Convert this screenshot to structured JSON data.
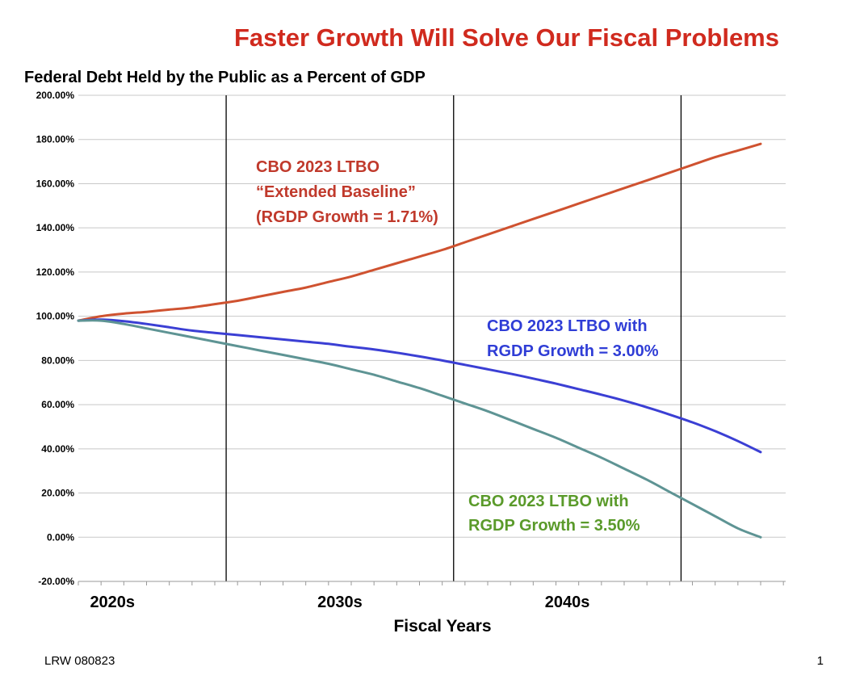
{
  "title": "Faster Growth Will Solve Our Fiscal Problems",
  "footer": {
    "left": "LRW 080823",
    "page_number": "1"
  },
  "colors": {
    "title": "#d02a1e",
    "grid": "#c8c8c8",
    "decade_lines": "#000000"
  },
  "chart_data": {
    "type": "line",
    "subtitle": "Federal Debt Held by the Public as a Percent of GDP",
    "xlabel": "Fiscal Years",
    "ylabel": "",
    "xlim": [
      2019,
      2050
    ],
    "ylim": [
      -20,
      200
    ],
    "y_ticks": [
      -20,
      0,
      20,
      40,
      60,
      80,
      100,
      120,
      140,
      160,
      180,
      200
    ],
    "y_tick_labels": [
      "-20.00%",
      "0.00%",
      "20.00%",
      "40.00%",
      "60.00%",
      "80.00%",
      "100.00%",
      "120.00%",
      "140.00%",
      "160.00%",
      "180.00%",
      "200.00%"
    ],
    "x_tick_labels": [
      {
        "label": "2020s",
        "x": 2020.5
      },
      {
        "label": "2030s",
        "x": 2030.5
      },
      {
        "label": "2040s",
        "x": 2040.5
      }
    ],
    "decade_boundaries": [
      2025.5,
      2035.5,
      2045.5
    ],
    "grid": true,
    "legend": "none",
    "x": [
      2019,
      2020,
      2021,
      2022,
      2023,
      2024,
      2025,
      2026,
      2027,
      2028,
      2029,
      2030,
      2031,
      2032,
      2033,
      2034,
      2035,
      2036,
      2037,
      2038,
      2039,
      2040,
      2041,
      2042,
      2043,
      2044,
      2045,
      2046,
      2047,
      2048,
      2049
    ],
    "series": [
      {
        "color": "#cf5230",
        "values": [
          98,
          100,
          101.2,
          102,
          103,
          104,
          105.5,
          107,
          109,
          111,
          113,
          115.5,
          118,
          121,
          124,
          127,
          130,
          133.5,
          137,
          140.5,
          144,
          147.5,
          151,
          154.5,
          158,
          161.5,
          165,
          168.5,
          172,
          175,
          178
        ],
        "label_lines": [
          "CBO 2023 LTBO",
          "“Extended Baseline”",
          "(RGDP Growth = 1.71%)"
        ],
        "label_color": "#c0392b"
      },
      {
        "color": "#3b3fd4",
        "values": [
          98,
          98.5,
          97.8,
          96.5,
          95,
          93.5,
          92.5,
          91.5,
          90.5,
          89.5,
          88.5,
          87.5,
          86.2,
          85,
          83.5,
          81.8,
          80,
          78,
          76,
          74,
          71.8,
          69.5,
          67,
          64.5,
          61.8,
          58.8,
          55.5,
          52,
          48,
          43.5,
          38.5
        ],
        "label_lines": [
          "CBO 2023 LTBO with",
          "RGDP Growth = 3.00%"
        ],
        "label_color": "#2f3dd6"
      },
      {
        "color": "#5e9494",
        "values": [
          98,
          98,
          96.5,
          94.5,
          92.5,
          90.5,
          88.5,
          86.5,
          84.5,
          82.5,
          80.5,
          78.5,
          76,
          73.5,
          70.5,
          67.5,
          64,
          60.5,
          57,
          53,
          49,
          45,
          40.5,
          36,
          31,
          26,
          20.5,
          15,
          9.5,
          4,
          0
        ],
        "label_lines": [
          "CBO 2023 LTBO with",
          "RGDP Growth = 3.50%"
        ],
        "label_color": "#5a9a2a"
      }
    ]
  }
}
